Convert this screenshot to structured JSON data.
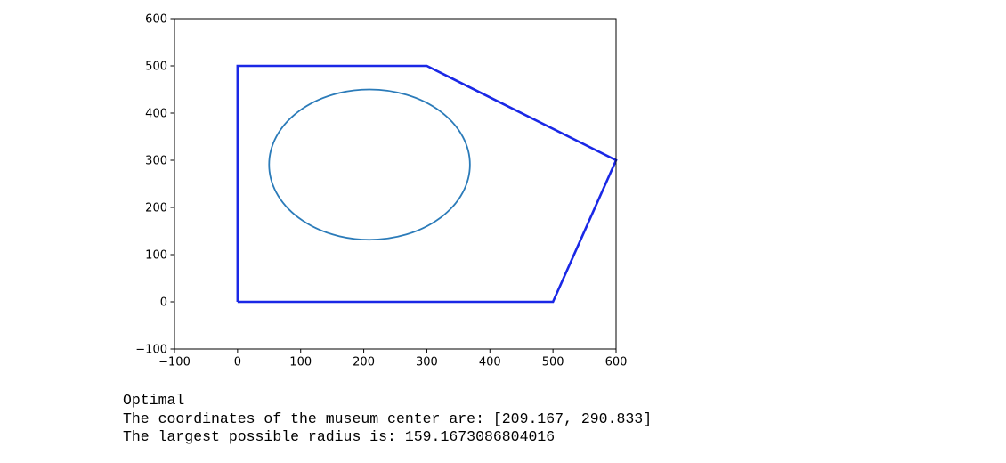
{
  "chart_data": {
    "type": "line",
    "title": "",
    "xlabel": "",
    "ylabel": "",
    "xlim": [
      -100,
      600
    ],
    "ylim": [
      -100,
      600
    ],
    "x_ticks": [
      -100,
      0,
      100,
      200,
      300,
      400,
      500,
      600
    ],
    "y_ticks": [
      -100,
      0,
      100,
      200,
      300,
      400,
      500,
      600
    ],
    "x_tick_labels": [
      "−100",
      "0",
      "100",
      "200",
      "300",
      "400",
      "500",
      "600"
    ],
    "y_tick_labels": [
      "−100",
      "0",
      "100",
      "200",
      "300",
      "400",
      "500",
      "600"
    ],
    "grid": false,
    "legend": "none",
    "series": [
      {
        "kind": "polygon",
        "color": "#1a28e6",
        "points": [
          [
            0,
            0
          ],
          [
            500,
            0
          ],
          [
            600,
            300
          ],
          [
            300,
            500
          ],
          [
            0,
            500
          ],
          [
            0,
            0
          ]
        ]
      },
      {
        "kind": "circle",
        "color": "#2b7bb9",
        "center": [
          209.167,
          290.833
        ],
        "radius": 159.1673086804016
      }
    ]
  },
  "output": {
    "lines": [
      "Optimal",
      "The coordinates of the museum center are: [209.167, 290.833]",
      "The largest possible radius is: 159.1673086804016"
    ]
  }
}
